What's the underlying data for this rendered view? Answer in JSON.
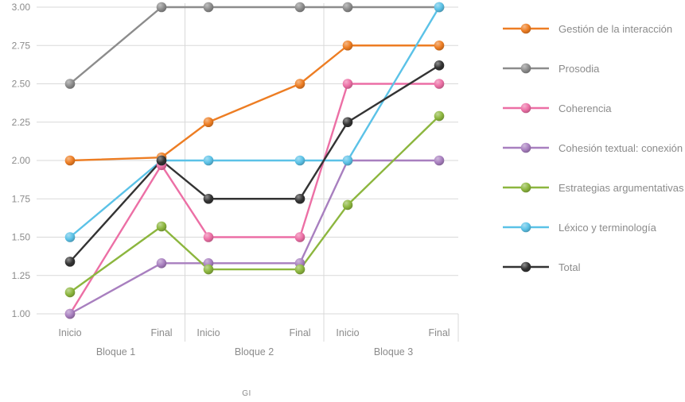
{
  "chart_data": {
    "type": "line",
    "title": "",
    "xlabel": "GI",
    "ylabel": "",
    "grid": true,
    "legend_position": "right",
    "ylim": [
      1.0,
      3.0
    ],
    "yticks": [
      1.0,
      1.25,
      1.5,
      1.75,
      2.0,
      2.25,
      2.5,
      2.75,
      3.0
    ],
    "categories": [
      "Inicio",
      "Final",
      "Inicio",
      "Final",
      "Inicio",
      "Final"
    ],
    "blocks": [
      {
        "label": "Bloque 1",
        "from": 0,
        "to": 1
      },
      {
        "label": "Bloque 2",
        "from": 2,
        "to": 3
      },
      {
        "label": "Bloque 3",
        "from": 4,
        "to": 5
      }
    ],
    "series": [
      {
        "name": "Gestión de la interacción",
        "color": "#ED7D23",
        "values": [
          2.0,
          2.02,
          2.25,
          2.5,
          2.75,
          2.75
        ]
      },
      {
        "name": "Prosodia",
        "color": "#8C8C8C",
        "values": [
          2.5,
          3.0,
          3.0,
          3.0,
          3.0,
          3.0
        ]
      },
      {
        "name": "Coherencia",
        "color": "#EC6FA5",
        "values": [
          1.0,
          1.97,
          1.5,
          1.5,
          2.5,
          2.5
        ]
      },
      {
        "name": "Cohesión textual: conexión",
        "color": "#A87FBF",
        "values": [
          1.0,
          1.33,
          1.33,
          1.33,
          2.0,
          2.0
        ]
      },
      {
        "name": "Estrategias argumentativas",
        "color": "#8CB63E",
        "values": [
          1.14,
          1.57,
          1.29,
          1.29,
          1.71,
          2.29
        ]
      },
      {
        "name": "Léxico y terminología",
        "color": "#5BC2E7",
        "values": [
          1.5,
          2.0,
          2.0,
          2.0,
          2.0,
          3.0
        ]
      },
      {
        "name": "Total",
        "color": "#333333",
        "values": [
          1.34,
          2.0,
          1.75,
          1.75,
          2.25,
          2.62
        ]
      }
    ],
    "colors": {
      "axis_text": "#8b8b8b",
      "gridline": "#d9d9d9"
    }
  }
}
